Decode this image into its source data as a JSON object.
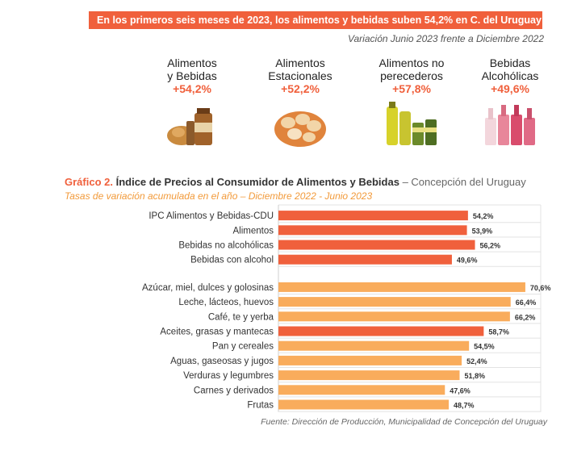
{
  "header": {
    "headline": "En los primeros seis meses de 2023, los alimentos y bebidas suben 54,2% en C. del Uruguay",
    "subhead": "Variación Junio 2023 frente a Diciembre 2022"
  },
  "cards": [
    {
      "line1": "Alimentos",
      "line2": "y Bebidas",
      "pct": "+54,2%",
      "icon": "food-and-drinks-icon"
    },
    {
      "line1": "Alimentos",
      "line2": "Estacionales",
      "pct": "+52,2%",
      "icon": "seasonal-food-icon"
    },
    {
      "line1": "Alimentos no",
      "line2": "perecederos",
      "pct": "+57,8%",
      "icon": "non-perishable-food-icon"
    },
    {
      "line1": "Bebidas",
      "line2": "Alcohólicas",
      "pct": "+49,6%",
      "icon": "alcoholic-drinks-icon"
    }
  ],
  "chart_title": {
    "label": "Gráfico 2.",
    "main": "Índice de Precios al Consumidor de Alimentos y Bebidas",
    "place": "– Concepción del Uruguay",
    "subtitle": "Tasas de variación acumulada en el año – Diciembre 2022 - Junio 2023"
  },
  "colors": {
    "accent": "#f0603c",
    "light": "#f9ac5c",
    "gridline": "#e3e3e3"
  },
  "chart_data": {
    "type": "bar",
    "orientation": "horizontal",
    "xlim": [
      0,
      75
    ],
    "grid": true,
    "groups": [
      {
        "categories": [
          "IPC Alimentos y Bebidas-CDU",
          "Alimentos",
          "Bebidas no alcohólicas",
          "Bebidas con alcohol"
        ],
        "values": [
          54.2,
          53.9,
          56.2,
          49.6
        ],
        "labels": [
          "54,2%",
          "53,9%",
          "56,2%",
          "49,6%"
        ],
        "colors": [
          "#f0603c",
          "#f0603c",
          "#f0603c",
          "#f0603c"
        ]
      },
      {
        "categories": [
          "Azúcar, miel, dulces y golosinas",
          "Leche, lácteos, huevos",
          "Café, te y yerba",
          "Aceites, grasas y mantecas",
          "Pan y cereales",
          "Aguas, gaseosas y jugos",
          "Verduras y legumbres",
          "Carnes y derivados",
          "Frutas"
        ],
        "values": [
          70.6,
          66.4,
          66.2,
          58.7,
          54.5,
          52.4,
          51.8,
          47.6,
          48.7
        ],
        "labels": [
          "70,6%",
          "66,4%",
          "66,2%",
          "58,7%",
          "54,5%",
          "52,4%",
          "51,8%",
          "47,6%",
          "48,7%"
        ],
        "colors": [
          "#f9ac5c",
          "#f9ac5c",
          "#f9ac5c",
          "#f0603c",
          "#f9ac5c",
          "#f9ac5c",
          "#f9ac5c",
          "#f9ac5c",
          "#f9ac5c"
        ]
      }
    ]
  },
  "source": "Fuente: Dirección de Producción, Municipalidad de Concepción del Uruguay"
}
